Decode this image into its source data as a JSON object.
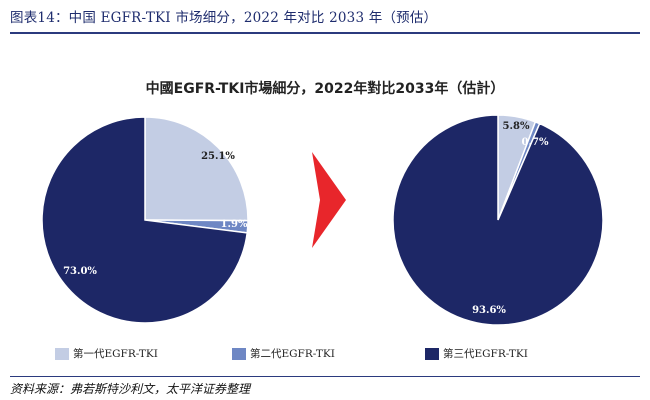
{
  "figure_header": "图表14：中国 EGFR-TKI 市场细分，2022 年对比 2033 年（预估）",
  "source_note": "资料来源：弗若斯特沙利文，太平洋证券整理",
  "colors": {
    "gen1": "#c3cde4",
    "gen2": "#6e87c4",
    "gen3": "#1d2766",
    "arrow": "#e8262b",
    "header": "#2b3a7e"
  },
  "chart_data": {
    "type": "pie",
    "title": "中國EGFR-TKI市場細分，2022年對比2033年（估計）",
    "legend": {
      "placement": "bottom",
      "entries": [
        "第一代EGFR-TKI",
        "第二代EGFR-TKI",
        "第三代EGFR-TKI"
      ]
    },
    "charts": [
      {
        "slices": [
          {
            "name": "第一代EGFR-TKI",
            "value": 25.1,
            "label": "25.1%"
          },
          {
            "name": "第二代EGFR-TKI",
            "value": 1.9,
            "label": "1.9%"
          },
          {
            "name": "第三代EGFR-TKI",
            "value": 73.0,
            "label": "73.0%"
          }
        ]
      },
      {
        "slices": [
          {
            "name": "第一代EGFR-TKI",
            "value": 5.8,
            "label": "5.8%"
          },
          {
            "name": "第二代EGFR-TKI",
            "value": 0.7,
            "label": "0.7%"
          },
          {
            "name": "第三代EGFR-TKI",
            "value": 93.6,
            "label": "93.6%"
          }
        ]
      }
    ]
  }
}
